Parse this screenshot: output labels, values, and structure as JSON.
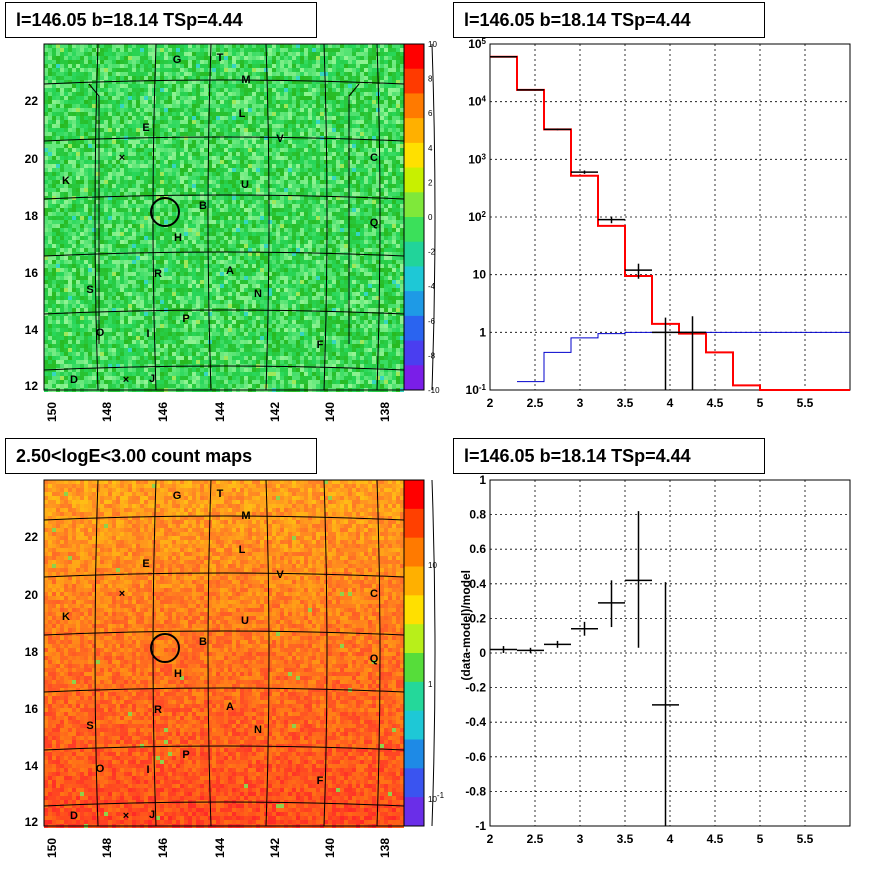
{
  "panels": {
    "tl": {
      "title": "l=146.05 b=18.14 TSp=4.44"
    },
    "tr": {
      "title": "l=146.05 b=18.14 TSp=4.44"
    },
    "bl": {
      "title": "2.50<logE<3.00 count maps"
    },
    "br": {
      "title": "l=146.05 b=18.14 TSp=4.44"
    }
  },
  "sky_map": {
    "x_ticks": [
      "150",
      "148",
      "146",
      "144",
      "142",
      "140",
      "138"
    ],
    "y_ticks": [
      "12",
      "14",
      "16",
      "18",
      "20",
      "22"
    ],
    "letters": [
      "G",
      "T",
      "M",
      "L",
      "E",
      "V",
      "C",
      "K",
      "U",
      "B",
      "Q",
      "H",
      "R",
      "A",
      "S",
      "N",
      "P",
      "O",
      "I",
      "F",
      "D",
      "J"
    ],
    "colorbar_top": [
      "10",
      "8",
      "6",
      "4",
      "2",
      "0",
      "-2",
      "-4",
      "-6",
      "-8",
      "-10"
    ],
    "colorbar_bottom": [
      "10",
      "1",
      "10^-1"
    ],
    "colors": {
      "significance_bg": "#3be05a",
      "counts_bg": "#f5a623",
      "counts_hot": "#ff2a00"
    }
  },
  "chart_data": [
    {
      "type": "line",
      "title": "l=146.05 b=18.14 TSp=4.44",
      "xlim": [
        2,
        6
      ],
      "ylim": [
        0.1,
        100000
      ],
      "y_scale": "log",
      "x_ticks": [
        "2",
        "2.5",
        "3",
        "3.5",
        "4",
        "4.5",
        "5",
        "5.5"
      ],
      "y_ticks": [
        "10^-1",
        "1",
        "10",
        "10^2",
        "10^3",
        "10^4",
        "10^5"
      ],
      "grid": true,
      "series": [
        {
          "role": "model",
          "color": "#ff0000",
          "type": "step",
          "x_edges": [
            2.0,
            2.3,
            2.6,
            2.9,
            3.2,
            3.5,
            3.8,
            4.1,
            4.4,
            4.7,
            5.0,
            5.3,
            5.6,
            6.0
          ],
          "values": [
            60000,
            16000,
            3300,
            520,
            70,
            9.5,
            1.4,
            0.95,
            0.45,
            0.12,
            0.1,
            0.1,
            0.1
          ]
        },
        {
          "role": "background",
          "color": "#0000cc",
          "type": "step",
          "x_edges": [
            2.3,
            2.6,
            2.9,
            3.2,
            3.5,
            3.8,
            4.1,
            4.4,
            4.7,
            5.0,
            5.3,
            5.6,
            6.0
          ],
          "values": [
            0.14,
            0.45,
            0.8,
            0.95,
            1.0,
            1.0,
            1.0,
            1.0,
            1.0,
            1.0,
            1.0,
            1.0
          ]
        },
        {
          "role": "data",
          "color": "#000000",
          "type": "errorbar",
          "x": [
            2.15,
            2.45,
            2.75,
            3.05,
            3.35,
            3.65,
            3.95,
            4.25
          ],
          "xerr": 0.15,
          "y": [
            60000,
            16000,
            3300,
            600,
            90,
            12,
            1.0,
            1.0
          ],
          "ylo": [
            59000,
            15700,
            3200,
            560,
            78,
            8.5,
            0.1,
            0.1
          ],
          "yhi": [
            61000,
            16300,
            3400,
            640,
            102,
            15.5,
            1.8,
            1.9
          ]
        }
      ]
    },
    {
      "type": "scatter",
      "title": "l=146.05 b=18.14 TSp=4.44",
      "ylabel": "(data-model)/model",
      "xlim": [
        2,
        6
      ],
      "ylim": [
        -1,
        1
      ],
      "x_ticks": [
        "2",
        "2.5",
        "3",
        "3.5",
        "4",
        "4.5",
        "5",
        "5.5"
      ],
      "y_ticks": [
        "-1",
        "-0.8",
        "-0.6",
        "-0.4",
        "-0.2",
        "0",
        "0.2",
        "0.4",
        "0.6",
        "0.8",
        "1"
      ],
      "grid": true,
      "series": [
        {
          "color": "#000000",
          "x": [
            2.15,
            2.45,
            2.75,
            3.05,
            3.35,
            3.65,
            3.95
          ],
          "xerr": 0.15,
          "y": [
            0.02,
            0.015,
            0.05,
            0.14,
            0.29,
            0.42,
            -0.3
          ],
          "ylo": [
            0.0,
            0.0,
            0.03,
            0.1,
            0.15,
            0.03,
            -1.0
          ],
          "yhi": [
            0.04,
            0.03,
            0.07,
            0.18,
            0.42,
            0.82,
            0.41
          ]
        }
      ]
    }
  ]
}
